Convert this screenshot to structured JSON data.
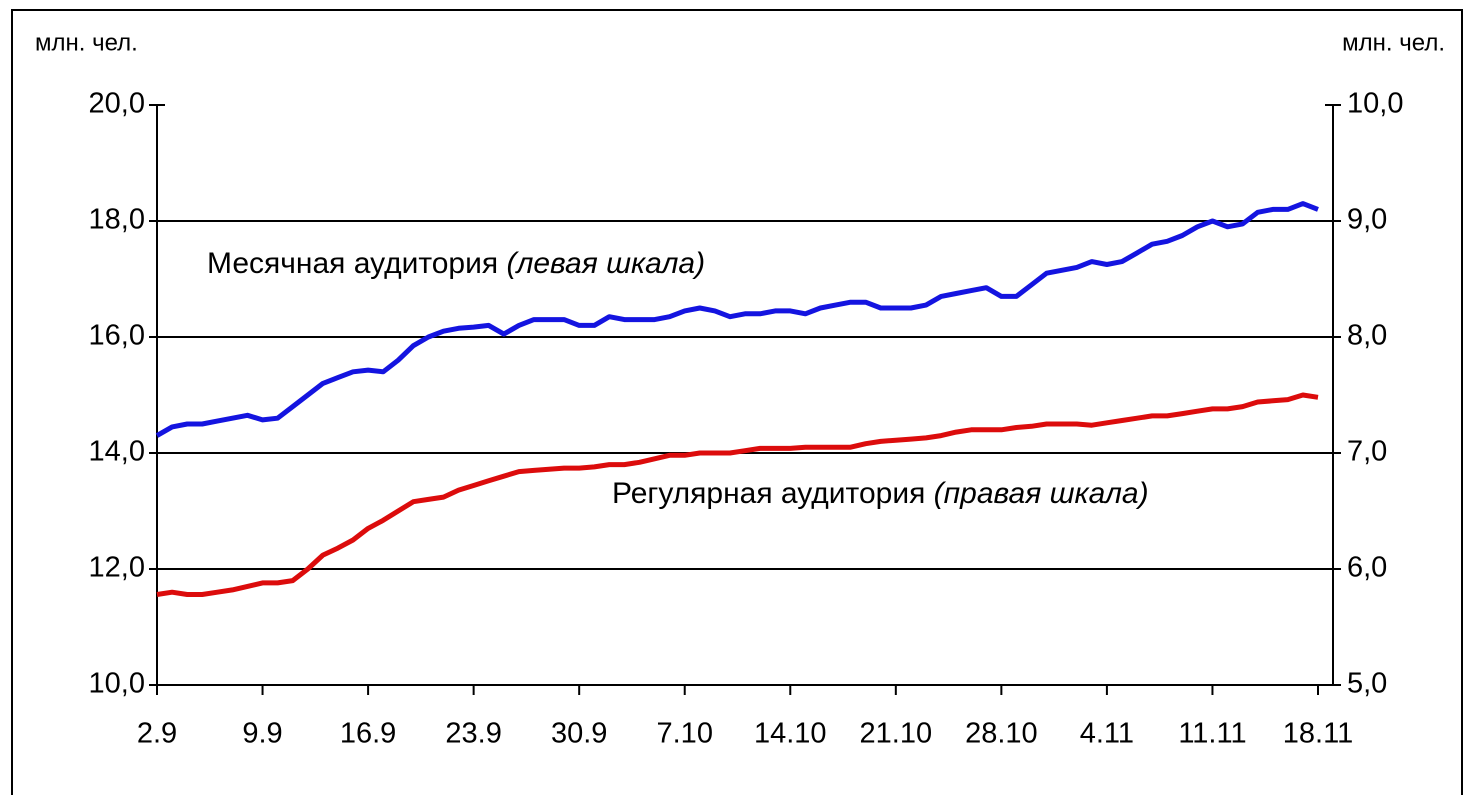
{
  "chart_data": {
    "type": "line",
    "y_label": "млн. чел.",
    "y2_label": "млн. чел.",
    "annotations": [
      {
        "text": "Месячная аудитория ",
        "note": "(левая шкала)"
      },
      {
        "text": "Регулярная аудитория ",
        "note": "(правая шкала)"
      }
    ],
    "categories": [
      "2.9",
      null,
      null,
      null,
      null,
      null,
      null,
      "9.9",
      null,
      null,
      null,
      null,
      null,
      null,
      "16.9",
      null,
      null,
      null,
      null,
      null,
      null,
      "23.9",
      null,
      null,
      null,
      null,
      null,
      null,
      "30.9",
      null,
      null,
      null,
      null,
      null,
      null,
      "7.10",
      null,
      null,
      null,
      null,
      null,
      null,
      "14.10",
      null,
      null,
      null,
      null,
      null,
      null,
      "21.10",
      null,
      null,
      null,
      null,
      null,
      null,
      "28.10",
      null,
      null,
      null,
      null,
      null,
      null,
      "4.11",
      null,
      null,
      null,
      null,
      null,
      null,
      "11.11",
      null,
      null,
      null,
      null,
      null,
      null,
      "18.11"
    ],
    "series": [
      {
        "name": "Месячная аудитория",
        "color": "#1414e0",
        "axis": "y",
        "values": [
          14.3,
          14.45,
          14.5,
          14.5,
          14.55,
          14.6,
          14.65,
          14.57,
          14.6,
          14.8,
          15.0,
          15.2,
          15.3,
          15.4,
          15.43,
          15.4,
          15.6,
          15.85,
          16.0,
          16.1,
          16.15,
          16.17,
          16.2,
          16.05,
          16.2,
          16.3,
          16.3,
          16.3,
          16.2,
          16.2,
          16.35,
          16.3,
          16.3,
          16.3,
          16.35,
          16.45,
          16.5,
          16.45,
          16.35,
          16.4,
          16.4,
          16.45,
          16.45,
          16.4,
          16.5,
          16.55,
          16.6,
          16.6,
          16.5,
          16.5,
          16.5,
          16.55,
          16.7,
          16.75,
          16.8,
          16.85,
          16.7,
          16.7,
          16.9,
          17.1,
          17.15,
          17.2,
          17.3,
          17.25,
          17.3,
          17.45,
          17.6,
          17.65,
          17.75,
          17.9,
          18.0,
          17.9,
          17.95,
          18.15,
          18.2,
          18.2,
          18.3,
          18.2
        ]
      },
      {
        "name": "Регулярная аудитория",
        "color": "#dc0c0c",
        "axis": "y2",
        "values": [
          5.78,
          5.8,
          5.78,
          5.78,
          5.8,
          5.82,
          5.85,
          5.88,
          5.88,
          5.9,
          6.0,
          6.12,
          6.18,
          6.25,
          6.35,
          6.42,
          6.5,
          6.58,
          6.6,
          6.62,
          6.68,
          6.72,
          6.76,
          6.8,
          6.84,
          6.85,
          6.86,
          6.87,
          6.87,
          6.88,
          6.9,
          6.9,
          6.92,
          6.95,
          6.98,
          6.98,
          7.0,
          7.0,
          7.0,
          7.02,
          7.04,
          7.04,
          7.04,
          7.05,
          7.05,
          7.05,
          7.05,
          7.08,
          7.1,
          7.11,
          7.12,
          7.13,
          7.15,
          7.18,
          7.2,
          7.2,
          7.2,
          7.22,
          7.23,
          7.25,
          7.25,
          7.25,
          7.24,
          7.26,
          7.28,
          7.3,
          7.32,
          7.32,
          7.34,
          7.36,
          7.38,
          7.38,
          7.4,
          7.44,
          7.45,
          7.46,
          7.5,
          7.48
        ]
      }
    ],
    "ylim": [
      10,
      20
    ],
    "yticks": [
      {
        "value": 10,
        "label": "10,0"
      },
      {
        "value": 12,
        "label": "12,0"
      },
      {
        "value": 14,
        "label": "14,0"
      },
      {
        "value": 16,
        "label": "16,0"
      },
      {
        "value": 18,
        "label": "18,0"
      },
      {
        "value": 20,
        "label": "20,0"
      }
    ],
    "y2lim": [
      5,
      10
    ],
    "y2ticks": [
      {
        "value": 5,
        "label": "5,0"
      },
      {
        "value": 6,
        "label": "6,0"
      },
      {
        "value": 7,
        "label": "7,0"
      },
      {
        "value": 8,
        "label": "8,0"
      },
      {
        "value": 9,
        "label": "9,0"
      },
      {
        "value": 10,
        "label": "10,0"
      }
    ],
    "grid": true
  }
}
